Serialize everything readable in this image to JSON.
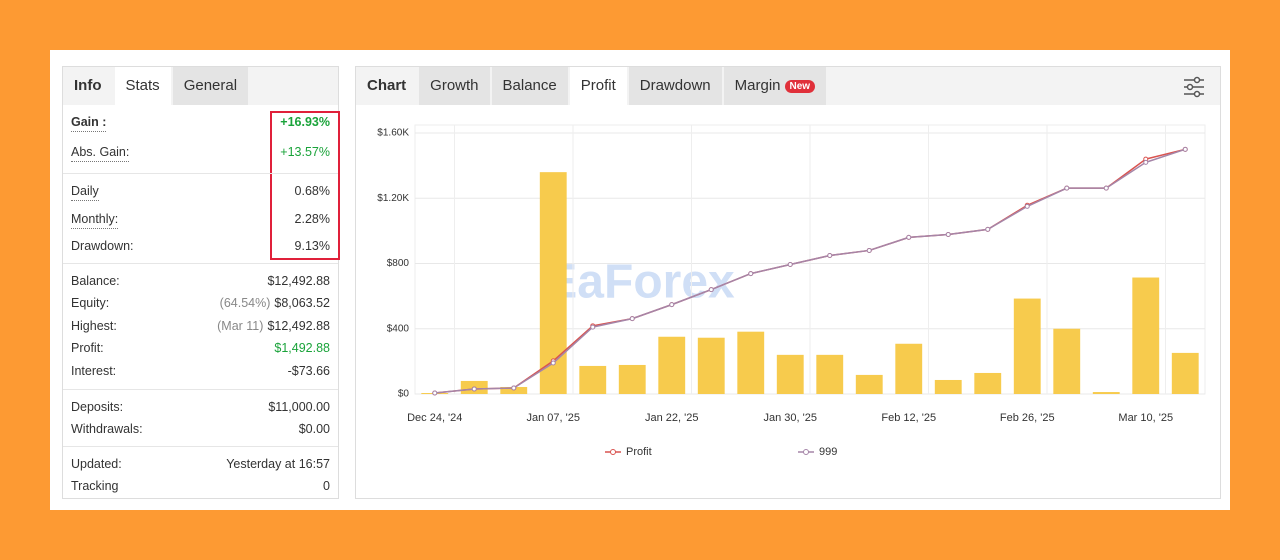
{
  "left_tabs": [
    "Info",
    "Stats",
    "General"
  ],
  "stats": {
    "groups": [
      [
        {
          "label": "Gain :",
          "value": "+16.93%"
        },
        {
          "label": "Abs. Gain:",
          "value": "+13.57%"
        }
      ],
      [
        {
          "label": "Daily",
          "value": "0.68%"
        },
        {
          "label": "Monthly:",
          "value": "2.28%"
        },
        {
          "label": "Drawdown:",
          "value": "9.13%"
        }
      ],
      [
        {
          "label": "Balance:",
          "value": "$12,492.88"
        },
        {
          "label": "Equity:",
          "note": "(64.54%)",
          "value": "$8,063.52"
        },
        {
          "label": "Highest:",
          "note": "(Mar 11)",
          "value": "$12,492.88"
        },
        {
          "label": "Profit:",
          "value": "$1,492.88"
        },
        {
          "label": "Interest:",
          "value": "-$73.66"
        }
      ],
      [
        {
          "label": "Deposits:",
          "value": "$11,000.00"
        },
        {
          "label": "Withdrawals:",
          "value": "$0.00"
        }
      ],
      [
        {
          "label": "Updated:",
          "value": "Yesterday at 16:57"
        },
        {
          "label": "Tracking",
          "value": "0"
        }
      ]
    ]
  },
  "right_tabs": [
    "Chart",
    "Growth",
    "Balance",
    "Profit",
    "Drawdown",
    "Margin"
  ],
  "badge": "New",
  "watermark": "EaForex",
  "chart_data": {
    "type": "combo",
    "categories": [
      "Dec 24, '24",
      null,
      null,
      "Jan 07, '25",
      null,
      null,
      "Jan 22, '25",
      null,
      null,
      "Jan 30, '25",
      null,
      null,
      "Feb 12, '25",
      null,
      null,
      "Feb 26, '25",
      null,
      null,
      "Mar 10, '25",
      null
    ],
    "series": [
      {
        "name": "Profit",
        "type": "line",
        "color": "#d9534f",
        "values": [
          6,
          31,
          37,
          203,
          418,
          462,
          548,
          640,
          738,
          794,
          849,
          880,
          960,
          978,
          1009,
          1157,
          1262,
          1262,
          1440,
          1500
        ]
      },
      {
        "name": "999",
        "type": "line",
        "color": "#a585a8",
        "values": [
          6,
          31,
          37,
          190,
          410,
          462,
          548,
          640,
          738,
          794,
          849,
          880,
          960,
          978,
          1009,
          1150,
          1262,
          1262,
          1420,
          1500
        ]
      },
      {
        "type": "bar",
        "color": "#f7cb4d",
        "values": [
          6,
          80,
          43,
          1360,
          172,
          178,
          351,
          345,
          382,
          240,
          240,
          117,
          308,
          86,
          129,
          585,
          400,
          12,
          714,
          252
        ]
      }
    ],
    "ylim": [
      0,
      1600
    ],
    "yticks": [
      {
        "value": 0,
        "label": "$0"
      },
      {
        "value": 400,
        "label": "$400"
      },
      {
        "value": 800,
        "label": "$800"
      },
      {
        "value": 1200,
        "label": "$1.20K"
      },
      {
        "value": 1600,
        "label": "$1.60K"
      }
    ],
    "grid": true
  }
}
